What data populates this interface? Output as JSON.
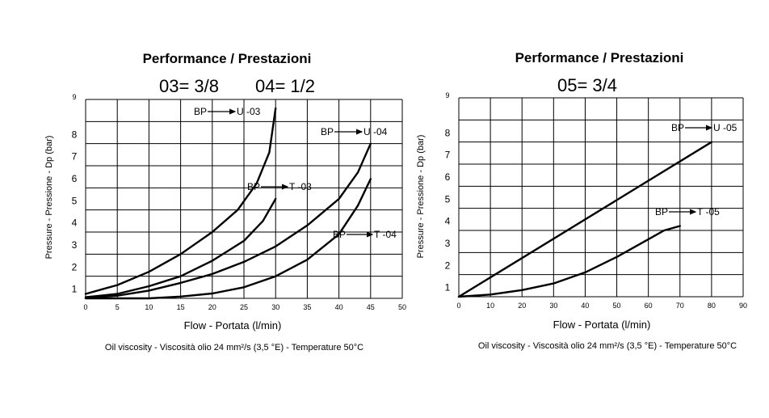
{
  "chart_data": [
    {
      "type": "line",
      "title": "Performance / Prestazioni",
      "subtitle_left": "03= 3/8",
      "subtitle_right": "04= 1/2",
      "xlabel": "Flow - Portata (l/min)",
      "ylabel": "Pressure - Pressione - Dp (bar)",
      "note": "Oil viscosity - Viscosità olio 24 mm²/s (3,5 °E) - Temperature 50°C",
      "xlim": [
        0,
        50
      ],
      "ylim": [
        0,
        9
      ],
      "xticks": [
        "0",
        "5",
        "10",
        "15",
        "20",
        "25",
        "30",
        "35",
        "40",
        "45",
        "50"
      ],
      "yticks": [
        "1",
        "2",
        "3",
        "4",
        "5",
        "6",
        "7",
        "8",
        "9"
      ],
      "series": [
        {
          "name": "BP→U -03",
          "x": [
            0,
            5,
            10,
            15,
            20,
            24,
            27,
            29,
            30
          ],
          "y": [
            0.2,
            0.6,
            1.2,
            2.0,
            3.0,
            4.0,
            5.2,
            6.6,
            8.6
          ]
        },
        {
          "name": "BP→T -03",
          "x": [
            0,
            5,
            10,
            15,
            20,
            25,
            28,
            30
          ],
          "y": [
            0.05,
            0.2,
            0.55,
            1.0,
            1.7,
            2.6,
            3.5,
            4.5
          ]
        },
        {
          "name": "BP→U -04",
          "x": [
            0,
            5,
            10,
            15,
            20,
            25,
            30,
            35,
            40,
            43,
            45
          ],
          "y": [
            0.02,
            0.12,
            0.35,
            0.7,
            1.1,
            1.65,
            2.35,
            3.3,
            4.5,
            5.7,
            7.0
          ]
        },
        {
          "name": "BP→T -04",
          "x": [
            0,
            5,
            10,
            15,
            20,
            25,
            30,
            35,
            40,
            43,
            45
          ],
          "y": [
            0.0,
            0.0,
            0.0,
            0.08,
            0.22,
            0.5,
            1.0,
            1.75,
            2.9,
            4.2,
            5.4
          ]
        }
      ],
      "curve_labels": [
        {
          "bp": "BP",
          "tag": "U -03"
        },
        {
          "bp": "BP",
          "tag": "T -03"
        },
        {
          "bp": "BP",
          "tag": "U -04"
        },
        {
          "bp": "BP",
          "tag": "T -04"
        }
      ]
    },
    {
      "type": "line",
      "title": "Performance / Prestazioni",
      "subtitle": "05= 3/4",
      "xlabel": "Flow - Portata (l/min)",
      "ylabel": "Pressure - Pressione - Dp (bar)",
      "note": "Oil viscosity - Viscosità olio 24 mm²/s (3,5 °E) - Temperature 50°C",
      "xlim": [
        0,
        90
      ],
      "ylim": [
        0,
        9
      ],
      "xticks": [
        "0",
        "10",
        "20",
        "30",
        "40",
        "50",
        "60",
        "70",
        "80",
        "90"
      ],
      "yticks": [
        "1",
        "2",
        "3",
        "4",
        "5",
        "6",
        "7",
        "8",
        "9"
      ],
      "series": [
        {
          "name": "BP→U -05",
          "x": [
            0,
            80
          ],
          "y": [
            0,
            7.0
          ]
        },
        {
          "name": "BP→T -05",
          "x": [
            0,
            10,
            20,
            30,
            40,
            50,
            60,
            65,
            70
          ],
          "y": [
            0,
            0.1,
            0.3,
            0.6,
            1.1,
            1.8,
            2.6,
            3.0,
            3.2
          ]
        }
      ],
      "curve_labels": [
        {
          "bp": "BP",
          "tag": "U -05"
        },
        {
          "bp": "BP",
          "tag": "T -05"
        }
      ]
    }
  ]
}
